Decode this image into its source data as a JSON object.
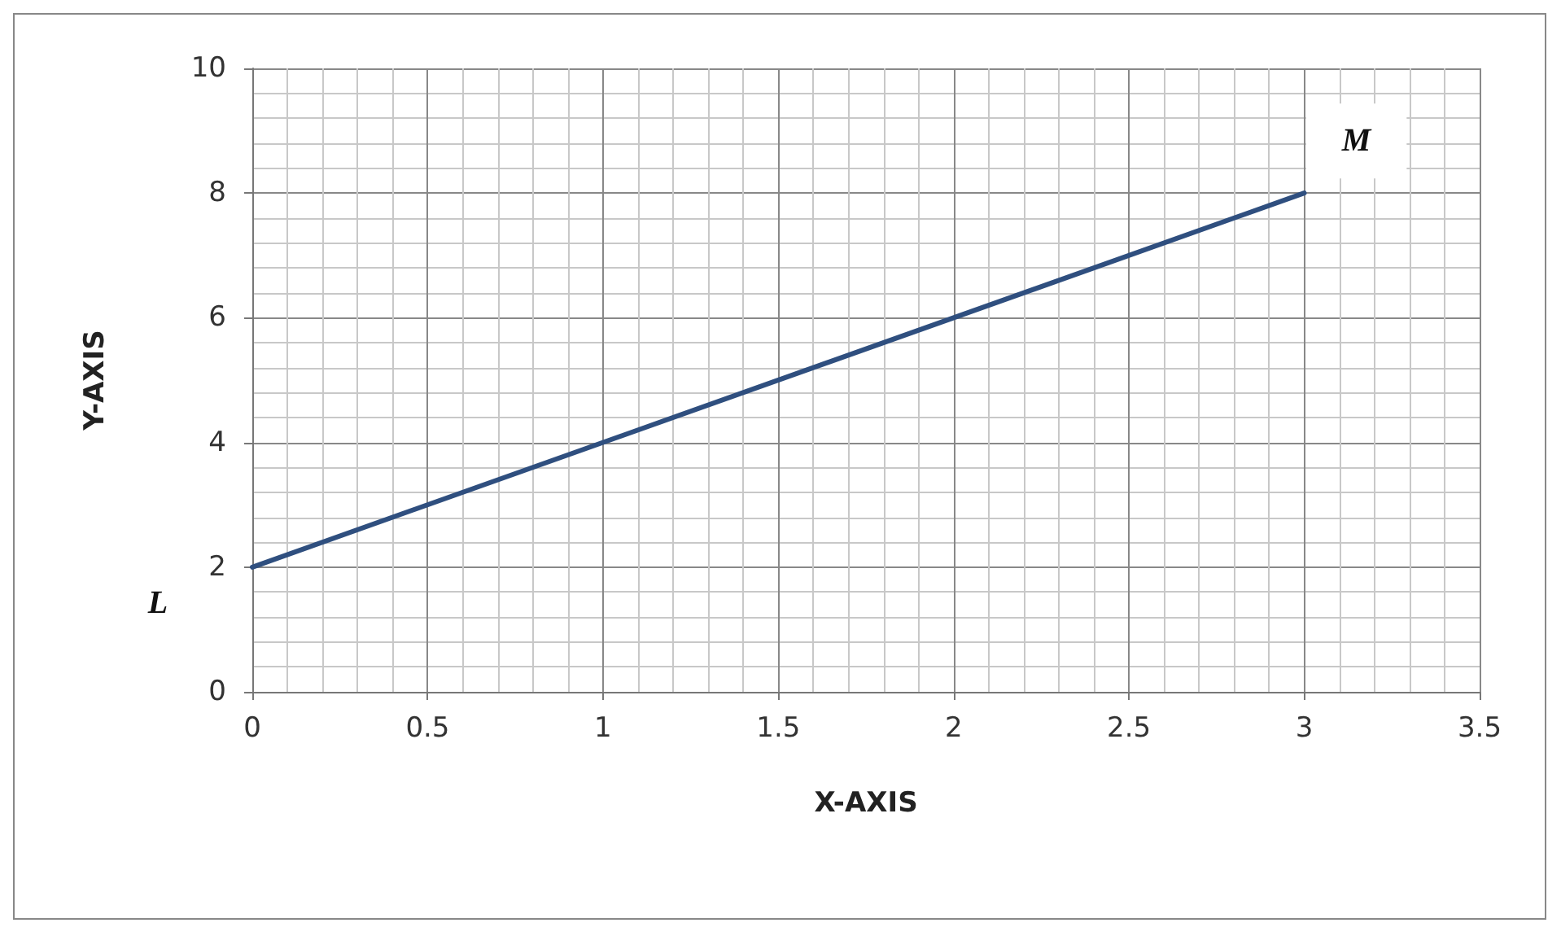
{
  "chart_data": {
    "type": "line",
    "xlabel": "X-AXIS",
    "ylabel": "Y-AXIS",
    "x": [
      0,
      3
    ],
    "series": [
      {
        "color": "#2f4f7f",
        "values": [
          2,
          8
        ]
      }
    ],
    "xlim": [
      0,
      3.5
    ],
    "xticks": [
      0,
      0.5,
      1,
      1.5,
      2,
      2.5,
      3,
      3.5
    ],
    "ylim": [
      0,
      10
    ],
    "yticks": [
      0,
      2,
      4,
      6,
      8,
      10
    ],
    "grid": true,
    "marker": "none",
    "annotations": [
      {
        "text": "L",
        "x": 0,
        "y": 2
      },
      {
        "text": "M",
        "x": 3,
        "y": 8
      }
    ]
  }
}
